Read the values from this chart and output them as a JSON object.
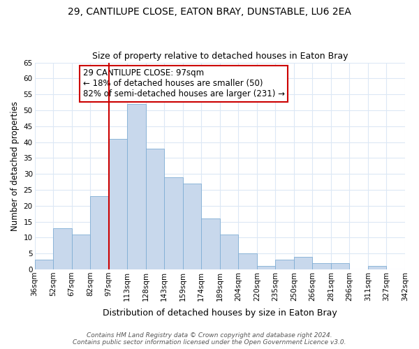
{
  "title": "29, CANTILUPE CLOSE, EATON BRAY, DUNSTABLE, LU6 2EA",
  "subtitle": "Size of property relative to detached houses in Eaton Bray",
  "xlabel": "Distribution of detached houses by size in Eaton Bray",
  "ylabel": "Number of detached properties",
  "bin_labels": [
    "36sqm",
    "52sqm",
    "67sqm",
    "82sqm",
    "97sqm",
    "113sqm",
    "128sqm",
    "143sqm",
    "159sqm",
    "174sqm",
    "189sqm",
    "204sqm",
    "220sqm",
    "235sqm",
    "250sqm",
    "266sqm",
    "281sqm",
    "296sqm",
    "311sqm",
    "327sqm",
    "342sqm"
  ],
  "bar_heights": [
    3,
    13,
    11,
    23,
    41,
    52,
    38,
    29,
    27,
    16,
    11,
    5,
    1,
    3,
    4,
    2,
    2,
    0,
    1,
    0
  ],
  "bar_color": "#c8d8ec",
  "bar_edge_color": "#7fadd4",
  "vline_x_idx": 4,
  "vline_color": "#cc0000",
  "annotation_text": "29 CANTILUPE CLOSE: 97sqm\n← 18% of detached houses are smaller (50)\n82% of semi-detached houses are larger (231) →",
  "annotation_box_color": "#ffffff",
  "annotation_box_edge": "#cc0000",
  "ylim": [
    0,
    65
  ],
  "yticks": [
    0,
    5,
    10,
    15,
    20,
    25,
    30,
    35,
    40,
    45,
    50,
    55,
    60,
    65
  ],
  "footer_line1": "Contains HM Land Registry data © Crown copyright and database right 2024.",
  "footer_line2": "Contains public sector information licensed under the Open Government Licence v3.0.",
  "bg_color": "#ffffff",
  "grid_color": "#dce8f5",
  "title_fontsize": 10,
  "subtitle_fontsize": 9,
  "xlabel_fontsize": 9,
  "ylabel_fontsize": 8.5,
  "tick_fontsize": 7.5,
  "annotation_fontsize": 8.5,
  "footer_fontsize": 6.5
}
